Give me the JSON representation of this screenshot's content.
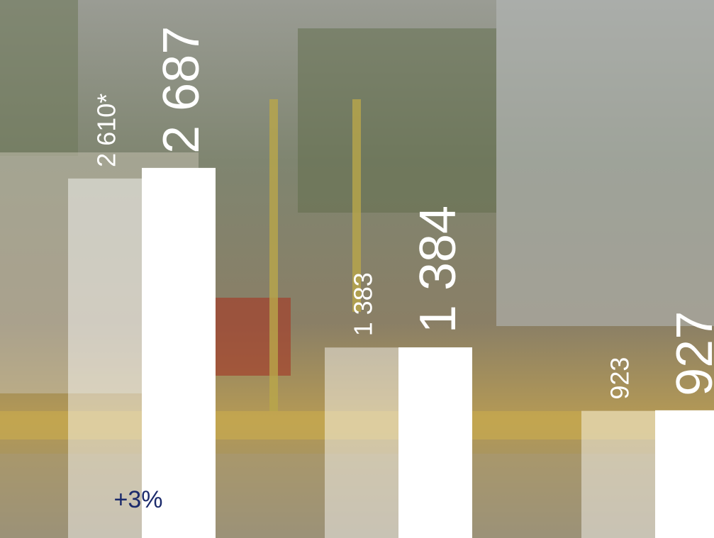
{
  "chart_data": {
    "type": "bar",
    "categories": [
      null,
      null,
      null
    ],
    "series": [
      {
        "color": "#ffffff",
        "values": [
          2610,
          1383,
          923
        ],
        "value_labels": [
          "2 610*",
          "1 383",
          "923"
        ]
      },
      {
        "color": "#ffffff",
        "values": [
          2687,
          1384,
          927
        ],
        "value_labels": [
          "2 687",
          "1 384",
          "927"
        ]
      }
    ],
    "ylim": [
      0,
      3906
    ],
    "annotations": [
      "+3%"
    ]
  }
}
